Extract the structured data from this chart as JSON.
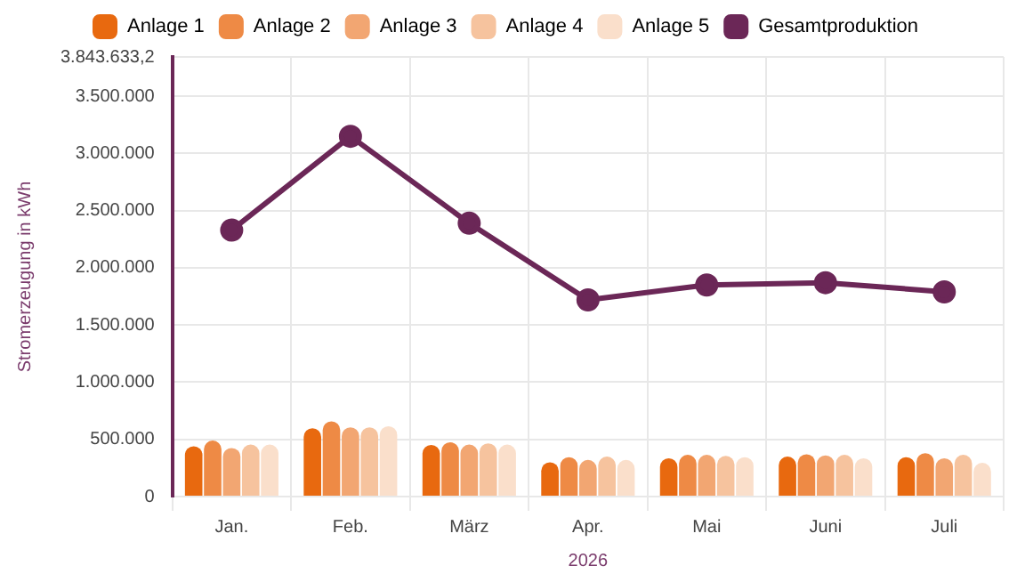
{
  "chart_data": {
    "type": "bar",
    "xlabel": "2026",
    "ylabel": "Stromerzeugung in kWh",
    "categories": [
      "Jan.",
      "Feb.",
      "März",
      "Apr.",
      "Mai",
      "Juni",
      "Juli"
    ],
    "series": [
      {
        "name": "Anlage 1",
        "color": "#e8690f",
        "values": [
          440000,
          598000,
          452000,
          300000,
          335000,
          350000,
          345000
        ]
      },
      {
        "name": "Anlage 2",
        "color": "#ee8a45",
        "values": [
          490000,
          658000,
          475000,
          345000,
          365000,
          370000,
          380000
        ]
      },
      {
        "name": "Anlage 3",
        "color": "#f2a672",
        "values": [
          425000,
          605000,
          455000,
          320000,
          365000,
          360000,
          335000
        ]
      },
      {
        "name": "Anlage 4",
        "color": "#f6c39e",
        "values": [
          455000,
          605000,
          465000,
          350000,
          355000,
          365000,
          365000
        ]
      },
      {
        "name": "Anlage 5",
        "color": "#fadfcb",
        "values": [
          455000,
          615000,
          455000,
          320000,
          345000,
          335000,
          295000
        ]
      },
      {
        "name": "Gesamtproduktion",
        "type": "line",
        "color": "#6b2757",
        "values": [
          2330000,
          3150000,
          2390000,
          1720000,
          1850000,
          1870000,
          1790000
        ]
      }
    ],
    "ylim": [
      0,
      3843633.2
    ],
    "yticks": [
      0,
      {
        "value": 500000,
        "label": "500.000"
      },
      {
        "value": 1000000,
        "label": "1.000.000"
      },
      {
        "value": 1500000,
        "label": "1.500.000"
      },
      {
        "value": 2000000,
        "label": "2.000.000"
      },
      {
        "value": 2500000,
        "label": "2.500.000"
      },
      {
        "value": 3000000,
        "label": "3.000.000"
      },
      {
        "value": 3500000,
        "label": "3.500.000"
      },
      {
        "value": 3843633.2,
        "label": "3.843.633,2"
      }
    ],
    "grid": true,
    "legend": "top",
    "marker": "circle",
    "line_style": "solid"
  }
}
